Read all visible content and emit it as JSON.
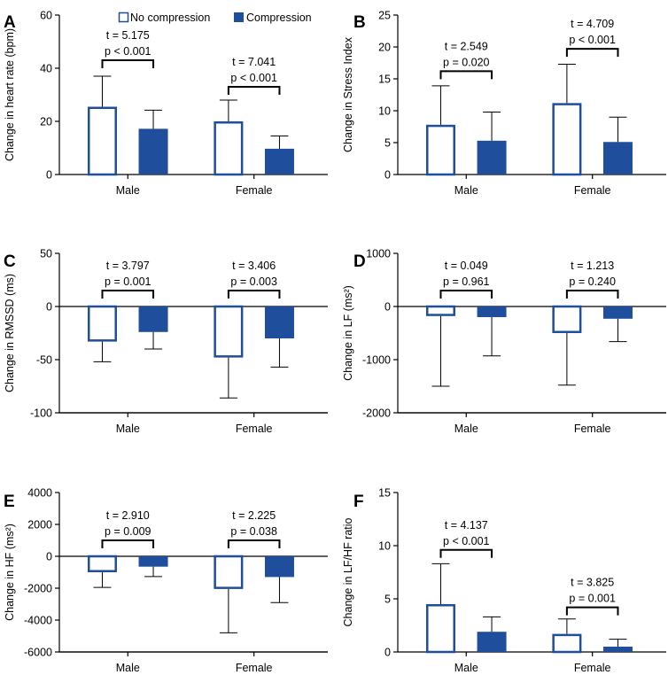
{
  "colors": {
    "accent": "#1f4e9c",
    "axis": "#000000",
    "background": "#ffffff"
  },
  "legend": [
    {
      "name": "No compression",
      "style": "outline"
    },
    {
      "name": "Compression",
      "style": "filled"
    }
  ],
  "chart_data": [
    {
      "type": "bar",
      "panel": "A",
      "ylabel": "Change in heart rate (bpm)",
      "categories": [
        "Male",
        "Female"
      ],
      "ylim": [
        0,
        60
      ],
      "yticks": [
        0,
        20,
        40,
        60
      ],
      "series": [
        {
          "name": "No compression",
          "values": [
            25.5,
            20.0
          ],
          "errors": [
            11.5,
            8.0
          ]
        },
        {
          "name": "Compression",
          "values": [
            17.2,
            9.7
          ],
          "errors": [
            7.0,
            4.8
          ]
        }
      ],
      "annotations": [
        {
          "category": "Male",
          "t": "t = 5.175",
          "p": "p < 0.001",
          "bracket_y": 43
        },
        {
          "category": "Female",
          "t": "t = 7.041",
          "p": "p < 0.001",
          "bracket_y": 33
        }
      ]
    },
    {
      "type": "bar",
      "panel": "B",
      "ylabel": "Change in Stress Index",
      "categories": [
        "Male",
        "Female"
      ],
      "ylim": [
        0,
        25
      ],
      "yticks": [
        0,
        5,
        10,
        15,
        20,
        25
      ],
      "series": [
        {
          "name": "No compression",
          "values": [
            7.8,
            11.2
          ],
          "errors": [
            6.1,
            6.1
          ]
        },
        {
          "name": "Compression",
          "values": [
            5.3,
            5.1
          ],
          "errors": [
            4.5,
            3.9
          ]
        }
      ],
      "annotations": [
        {
          "category": "Male",
          "t": "t = 2.549",
          "p": "p = 0.020",
          "bracket_y": 16.2
        },
        {
          "category": "Female",
          "t": "t = 4.709",
          "p": "p < 0.001",
          "bracket_y": 19.7
        }
      ]
    },
    {
      "type": "bar",
      "panel": "C",
      "ylabel": "Change in RMSSD (ms)",
      "categories": [
        "Male",
        "Female"
      ],
      "ylim": [
        -100,
        50
      ],
      "yticks": [
        -100,
        -50,
        0,
        50
      ],
      "series": [
        {
          "name": "No compression",
          "values": [
            -33,
            -48
          ],
          "errors": [
            19,
            38
          ]
        },
        {
          "name": "Compression",
          "values": [
            -24,
            -30
          ],
          "errors": [
            16,
            27
          ]
        }
      ],
      "annotations": [
        {
          "category": "Male",
          "t": "t = 3.797",
          "p": "p = 0.001",
          "bracket_y": 15
        },
        {
          "category": "Female",
          "t": "t = 3.406",
          "p": "p = 0.003",
          "bracket_y": 15
        }
      ]
    },
    {
      "type": "bar",
      "panel": "D",
      "ylabel": "Change in LF (ms²)",
      "categories": [
        "Male",
        "Female"
      ],
      "ylim": [
        -2000,
        1000
      ],
      "yticks": [
        -2000,
        -1000,
        0,
        1000
      ],
      "series": [
        {
          "name": "No compression",
          "values": [
            -180,
            -500
          ],
          "errors": [
            1320,
            980
          ]
        },
        {
          "name": "Compression",
          "values": [
            -200,
            -230
          ],
          "errors": [
            730,
            430
          ]
        }
      ],
      "annotations": [
        {
          "category": "Male",
          "t": "t = 0.049",
          "p": "p = 0.961",
          "bracket_y": 300
        },
        {
          "category": "Female",
          "t": "t = 1.213",
          "p": "p = 0.240",
          "bracket_y": 300
        }
      ]
    },
    {
      "type": "bar",
      "panel": "E",
      "ylabel": "Change in HF (ms²)",
      "categories": [
        "Male",
        "Female"
      ],
      "ylim": [
        -6000,
        4000
      ],
      "yticks": [
        -6000,
        -4000,
        -2000,
        0,
        2000,
        4000
      ],
      "series": [
        {
          "name": "No compression",
          "values": [
            -1000,
            -2050
          ],
          "errors": [
            950,
            2750
          ]
        },
        {
          "name": "Compression",
          "values": [
            -650,
            -1300
          ],
          "errors": [
            620,
            1600
          ]
        }
      ],
      "annotations": [
        {
          "category": "Male",
          "t": "t = 2.910",
          "p": "p = 0.009",
          "bracket_y": 1000
        },
        {
          "category": "Female",
          "t": "t = 2.225",
          "p": "p = 0.038",
          "bracket_y": 1000
        }
      ]
    },
    {
      "type": "bar",
      "panel": "F",
      "ylabel": "Change in LF/HF ratio",
      "categories": [
        "Male",
        "Female"
      ],
      "ylim": [
        0,
        15
      ],
      "yticks": [
        0,
        5,
        10,
        15
      ],
      "series": [
        {
          "name": "No compression",
          "values": [
            4.5,
            1.7
          ],
          "errors": [
            3.8,
            1.4
          ]
        },
        {
          "name": "Compression",
          "values": [
            1.9,
            0.5
          ],
          "errors": [
            1.4,
            0.7
          ]
        }
      ],
      "annotations": [
        {
          "category": "Male",
          "t": "t = 4.137",
          "p": "p < 0.001",
          "bracket_y": 9.6
        },
        {
          "category": "Female",
          "t": "t = 3.825",
          "p": "p = 0.001",
          "bracket_y": 4.2
        }
      ]
    }
  ]
}
